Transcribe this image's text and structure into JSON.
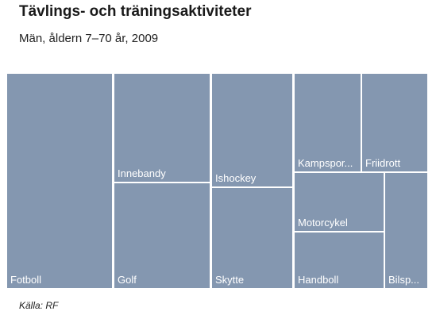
{
  "header": {
    "title": "Tävlings- och träningsaktiviteter",
    "subtitle": "Män, åldern 7–70 år, 2009"
  },
  "footer": {
    "source": "Källa: RF"
  },
  "chart_data": {
    "type": "treemap",
    "color": "#8497b0",
    "border_color": "#ffffff",
    "label_color": "#ffffff",
    "items": [
      {
        "name": "Fotboll",
        "display": "Fotboll"
      },
      {
        "name": "Innebandy",
        "display": "Innebandy"
      },
      {
        "name": "Golf",
        "display": "Golf"
      },
      {
        "name": "Ishockey",
        "display": "Ishockey"
      },
      {
        "name": "Skytte",
        "display": "Skytte"
      },
      {
        "name": "Kampsport",
        "display": "Kampspor..."
      },
      {
        "name": "Friidrott",
        "display": "Friidrott"
      },
      {
        "name": "Motorcykel",
        "display": "Motorcykel"
      },
      {
        "name": "Handboll",
        "display": "Handboll"
      },
      {
        "name": "Bilsport",
        "display": "Bilsp..."
      }
    ]
  }
}
